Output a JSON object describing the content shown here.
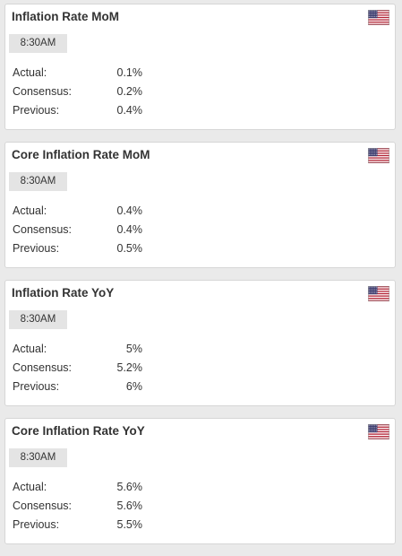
{
  "colors": {
    "page_background": "#eaeaea",
    "card_background": "#ffffff",
    "badge_background": "#e4e4e4",
    "text": "#333333",
    "flag_red": "#b22234",
    "flag_blue": "#3c3b6e"
  },
  "labels": {
    "actual": "Actual:",
    "consensus": "Consensus:",
    "previous": "Previous:"
  },
  "events": [
    {
      "title": "Inflation Rate MoM",
      "time": "8:30AM",
      "flag_icon": "us-flag-icon",
      "actual": "0.1%",
      "consensus": "0.2%",
      "previous": "0.4%"
    },
    {
      "title": "Core Inflation Rate MoM",
      "time": "8:30AM",
      "flag_icon": "us-flag-icon",
      "actual": "0.4%",
      "consensus": "0.4%",
      "previous": "0.5%"
    },
    {
      "title": "Inflation Rate YoY",
      "time": "8:30AM",
      "flag_icon": "us-flag-icon",
      "actual": "5%",
      "consensus": "5.2%",
      "previous": "6%"
    },
    {
      "title": "Core Inflation Rate YoY",
      "time": "8:30AM",
      "flag_icon": "us-flag-icon",
      "actual": "5.6%",
      "consensus": "5.6%",
      "previous": "5.5%"
    }
  ]
}
